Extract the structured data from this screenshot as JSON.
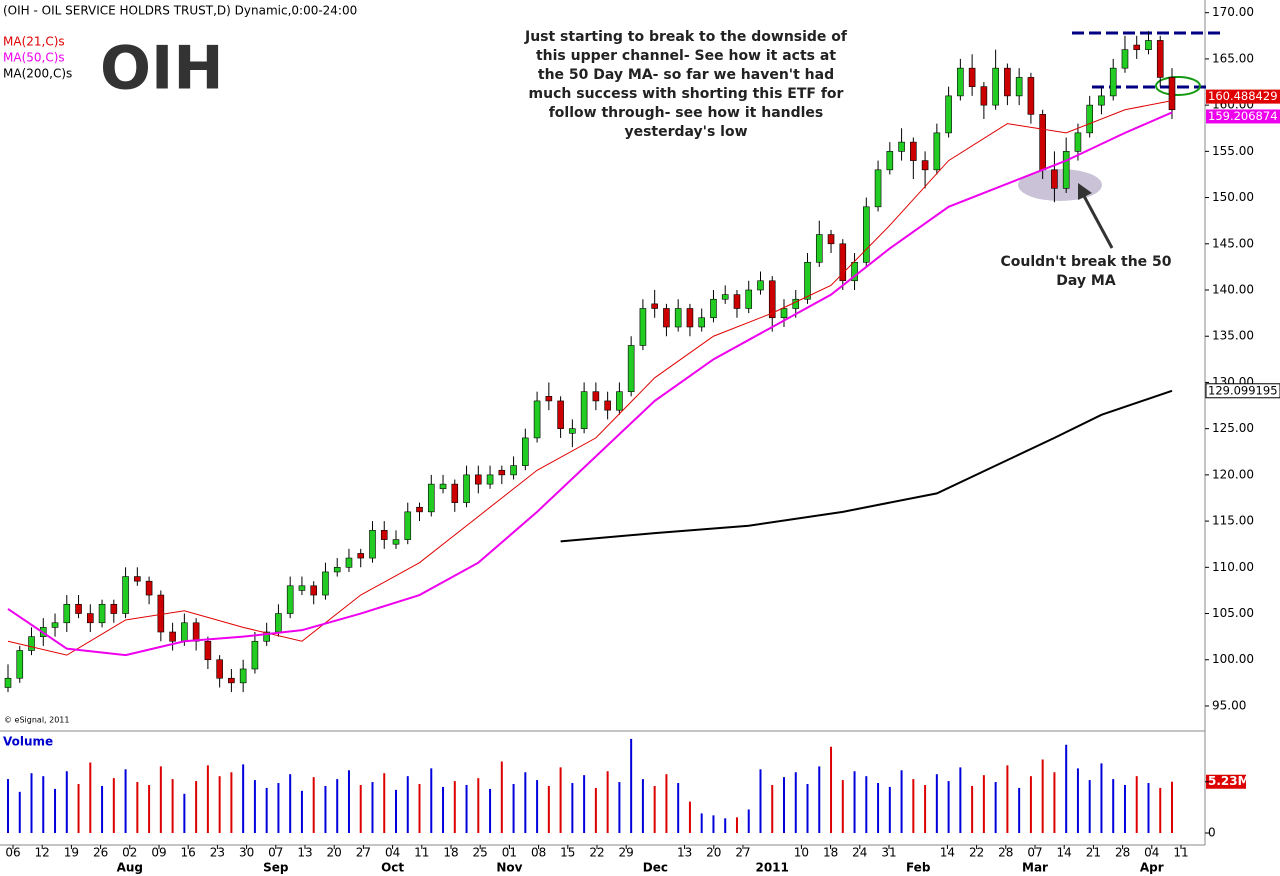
{
  "chart_data": {
    "type": "candlestick",
    "title": "(OIH - OIL SERVICE HOLDRS TRUST,D) Dynamic,0:00-24:00",
    "logo": "OIH",
    "copyright": "© eSignal, 2011",
    "annotation_lines": [
      "Just starting to break to the downside of",
      "this upper channel- See how it acts at",
      "the 50 Day MA- so far we haven't had",
      "much success with shorting this ETF for",
      "follow through- see how it handles",
      "yesterday's low"
    ],
    "callout_lines": [
      "Couldn't break the 50",
      "Day MA"
    ],
    "ylim": [
      92.4,
      170.4
    ],
    "yticks": [
      {
        "value": 95,
        "label": "95.00"
      },
      {
        "value": 100,
        "label": "100.00"
      },
      {
        "value": 105,
        "label": "105.00"
      },
      {
        "value": 110,
        "label": "110.00"
      },
      {
        "value": 115,
        "label": "115.00"
      },
      {
        "value": 120,
        "label": "120.00"
      },
      {
        "value": 125,
        "label": "125.00"
      },
      {
        "value": 130,
        "label": "130.00"
      },
      {
        "value": 135,
        "label": "135.00"
      },
      {
        "value": 140,
        "label": "140.00"
      },
      {
        "value": 145,
        "label": "145.00"
      },
      {
        "value": 150,
        "label": "150.00"
      },
      {
        "value": 155,
        "label": "155.00"
      },
      {
        "value": 160,
        "label": "160.00"
      },
      {
        "value": 165,
        "label": "165.00"
      },
      {
        "value": 170,
        "label": "170.00"
      }
    ],
    "up_color": "#22cc22",
    "down_color": "#cc0000",
    "candles": [
      [
        97,
        99.5,
        96.5,
        98
      ],
      [
        98,
        101.5,
        97.5,
        101
      ],
      [
        101,
        103.5,
        100.5,
        102.5
      ],
      [
        102.5,
        104.5,
        101.5,
        103.5
      ],
      [
        103.5,
        105,
        102.5,
        104
      ],
      [
        104,
        107,
        103,
        106
      ],
      [
        106,
        107,
        104.5,
        105
      ],
      [
        105,
        106,
        103,
        104
      ],
      [
        104,
        106.5,
        103.5,
        106
      ],
      [
        106,
        106.5,
        104,
        105
      ],
      [
        105,
        110,
        104.5,
        109
      ],
      [
        109,
        110,
        108,
        108.5
      ],
      [
        108.5,
        109,
        106,
        107
      ],
      [
        107,
        107.5,
        102,
        103
      ],
      [
        103,
        104,
        101,
        102
      ],
      [
        102,
        105,
        101.5,
        104
      ],
      [
        104,
        104.5,
        101,
        102
      ],
      [
        102,
        102.5,
        99,
        100
      ],
      [
        100,
        100.5,
        97,
        98
      ],
      [
        98,
        99,
        96.5,
        97.5
      ],
      [
        97.5,
        100,
        96.5,
        99
      ],
      [
        99,
        103,
        98.5,
        102
      ],
      [
        102,
        104,
        101.5,
        103
      ],
      [
        103,
        106,
        102.5,
        105
      ],
      [
        105,
        109,
        104.5,
        108
      ],
      [
        107.5,
        109,
        107,
        108
      ],
      [
        108,
        108.5,
        106,
        107
      ],
      [
        107,
        110.5,
        106.5,
        109.5
      ],
      [
        109.5,
        111,
        109,
        110
      ],
      [
        110,
        112,
        109.5,
        111
      ],
      [
        111.5,
        112,
        110,
        111
      ],
      [
        111,
        115,
        110.5,
        114
      ],
      [
        114,
        115,
        112,
        113
      ],
      [
        112.5,
        114,
        112,
        113
      ],
      [
        113,
        117,
        112.5,
        116
      ],
      [
        116.5,
        117,
        115,
        116
      ],
      [
        116,
        120,
        115.5,
        119
      ],
      [
        118.5,
        120,
        118,
        119
      ],
      [
        119,
        119.5,
        116,
        117
      ],
      [
        117,
        121,
        116.5,
        120
      ],
      [
        120,
        121,
        118,
        119
      ],
      [
        119,
        121,
        118.5,
        120
      ],
      [
        120.5,
        121,
        119,
        120
      ],
      [
        120,
        122,
        119.5,
        121
      ],
      [
        121,
        125,
        120.5,
        124
      ],
      [
        124,
        129,
        123.5,
        128
      ],
      [
        128.5,
        130,
        127,
        128
      ],
      [
        128,
        128.5,
        124,
        125
      ],
      [
        124.5,
        126,
        123,
        125
      ],
      [
        125,
        130,
        124.5,
        129
      ],
      [
        129,
        130,
        127,
        128
      ],
      [
        128,
        129,
        126,
        127
      ],
      [
        127,
        130,
        126.5,
        129
      ],
      [
        129,
        135,
        128.5,
        134
      ],
      [
        134,
        139,
        133.5,
        138
      ],
      [
        138.5,
        140,
        137,
        138
      ],
      [
        138,
        138.5,
        135,
        136
      ],
      [
        136,
        139,
        135.5,
        138
      ],
      [
        138,
        138.5,
        135,
        136
      ],
      [
        136,
        138,
        135.5,
        137
      ],
      [
        137,
        140,
        136.5,
        139
      ],
      [
        139,
        140.5,
        138.5,
        139.5
      ],
      [
        139.5,
        140,
        137,
        138
      ],
      [
        138,
        141,
        137.5,
        140
      ],
      [
        140,
        142,
        139.5,
        141
      ],
      [
        141,
        141.5,
        135.5,
        137
      ],
      [
        137,
        139,
        136,
        138
      ],
      [
        138,
        140,
        137,
        139
      ],
      [
        139,
        144,
        138.5,
        143
      ],
      [
        143,
        147.5,
        142.5,
        146
      ],
      [
        146,
        146.5,
        144,
        145
      ],
      [
        145,
        145.5,
        140,
        141
      ],
      [
        141,
        144,
        140,
        143
      ],
      [
        143,
        150,
        142.5,
        149
      ],
      [
        149,
        154,
        148.5,
        153
      ],
      [
        153,
        156,
        152.5,
        155
      ],
      [
        155,
        157.5,
        154,
        156
      ],
      [
        156,
        156.5,
        152,
        154
      ],
      [
        154,
        155,
        151,
        153
      ],
      [
        153,
        158,
        152.5,
        157
      ],
      [
        157,
        162,
        156.5,
        161
      ],
      [
        161,
        165,
        160.5,
        164
      ],
      [
        164,
        165.5,
        161,
        162
      ],
      [
        162,
        162.5,
        158.5,
        160
      ],
      [
        160,
        166,
        159.5,
        164
      ],
      [
        164,
        164.5,
        160,
        161
      ],
      [
        161,
        164,
        160,
        163
      ],
      [
        163,
        163.5,
        158,
        159
      ],
      [
        159,
        159.5,
        152,
        153
      ],
      [
        153,
        155,
        149.5,
        151
      ],
      [
        151,
        156.5,
        150.5,
        155
      ],
      [
        155,
        158,
        154,
        157
      ],
      [
        157,
        161,
        156.5,
        160
      ],
      [
        160,
        162,
        159,
        161
      ],
      [
        161,
        165,
        160.5,
        164
      ],
      [
        164,
        167.5,
        163.5,
        166
      ],
      [
        166.5,
        167.5,
        165,
        166
      ],
      [
        166,
        168,
        165.5,
        167
      ],
      [
        167,
        167.5,
        162,
        163
      ],
      [
        163,
        164,
        158.5,
        159.5
      ]
    ],
    "ma": [
      {
        "name": "MA(21,C)s",
        "color": "#e00000",
        "x": [
          0,
          5,
          10,
          15,
          20,
          25,
          30,
          35,
          40,
          45,
          50,
          55,
          60,
          65,
          70,
          75,
          80,
          85,
          90,
          95,
          99
        ],
        "values": [
          102,
          100.5,
          104.3,
          105.3,
          103.5,
          102,
          107,
          110.5,
          115.5,
          120.5,
          124,
          130.5,
          135,
          137.5,
          140.5,
          147,
          154,
          158,
          157,
          159.5,
          160.488429
        ]
      },
      {
        "name": "MA(50,C)s",
        "color": "#ee00ee",
        "x": [
          0,
          5,
          10,
          15,
          20,
          25,
          30,
          35,
          40,
          45,
          50,
          55,
          60,
          65,
          70,
          75,
          80,
          85,
          90,
          95,
          99
        ],
        "values": [
          105.5,
          101.2,
          100.5,
          102,
          102.5,
          103.2,
          105,
          107,
          110.5,
          116,
          122,
          128,
          132.5,
          136,
          139.5,
          144.5,
          149,
          151.5,
          154,
          157,
          159.206874
        ]
      },
      {
        "name": "MA(200,C)s",
        "color": "#000000",
        "x": [
          47,
          55,
          63,
          71,
          79,
          84,
          89,
          93,
          99
        ],
        "values": [
          112.8,
          113.7,
          114.5,
          116,
          118,
          121,
          124,
          126.5,
          129.099195
        ]
      }
    ],
    "volume": {
      "title": "Volume",
      "up_color": "#0000dd",
      "down_color": "#dd0000",
      "ylim": [
        0,
        10
      ],
      "yticks": [
        0,
        {
          "value": 5.23,
          "label": "5.23M"
        }
      ],
      "values": [
        5.5,
        4.2,
        6.1,
        5.8,
        4.5,
        6.3,
        5.0,
        7.2,
        4.8,
        5.6,
        6.5,
        5.2,
        4.9,
        6.8,
        5.5,
        4.0,
        5.3,
        6.9,
        5.8,
        6.2,
        7.0,
        5.4,
        4.6,
        5.1,
        6.0,
        4.3,
        5.7,
        4.8,
        5.5,
        6.4,
        4.9,
        5.2,
        6.1,
        4.4,
        5.8,
        5.0,
        6.6,
        4.7,
        5.3,
        4.9,
        5.6,
        4.5,
        7.3,
        5.0,
        6.2,
        5.4,
        4.8,
        6.7,
        5.1,
        5.9,
        4.6,
        6.3,
        5.2,
        9.6,
        5.5,
        4.8,
        6.0,
        5.1,
        3.2,
        2.0,
        1.8,
        1.5,
        1.6,
        2.4,
        6.5,
        4.9,
        5.7,
        6.2,
        5.0,
        6.8,
        8.8,
        5.4,
        6.3,
        5.8,
        5.1,
        4.7,
        6.4,
        5.5,
        4.9,
        6.0,
        5.3,
        6.7,
        4.8,
        5.9,
        5.2,
        6.9,
        4.6,
        5.8,
        7.5,
        6.2,
        9.0,
        6.6,
        5.4,
        7.1,
        5.5,
        4.9,
        5.8,
        5.1,
        4.6,
        5.23
      ]
    },
    "x_labels": [
      "06",
      "12",
      "19",
      "26",
      "02",
      "09",
      "16",
      "23",
      "30",
      "07",
      "13",
      "20",
      "27",
      "04",
      "11",
      "18",
      "25",
      "01",
      "08",
      "15",
      "22",
      "29",
      null,
      "13",
      "20",
      "27",
      null,
      "10",
      "18",
      "24",
      "31",
      null,
      "14",
      "22",
      "28",
      "07",
      "14",
      "21",
      "28",
      "04",
      "11"
    ],
    "month_labels": [
      null,
      null,
      null,
      null,
      "Aug",
      null,
      null,
      null,
      null,
      "Sep",
      null,
      null,
      null,
      "Oct",
      null,
      null,
      null,
      "Nov",
      null,
      null,
      null,
      null,
      "Dec",
      null,
      null,
      null,
      "2011",
      null,
      null,
      null,
      null,
      "Feb",
      null,
      null,
      null,
      "Mar",
      null,
      null,
      null,
      "Apr",
      null
    ]
  }
}
